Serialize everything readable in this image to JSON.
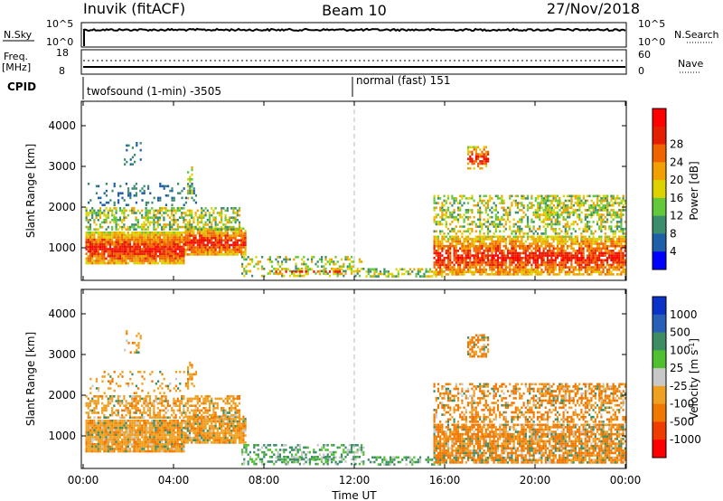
{
  "header": {
    "left": "Inuvik (fitACF)",
    "center": "Beam 10",
    "right": "27/Nov/2018"
  },
  "strip_labels": {
    "nsky": "N.Sky",
    "nsky_top": "10^5",
    "nsky_bottom": "10^0",
    "nsearch": "N.Search",
    "nsearch_top": "10^5",
    "nsearch_bottom": "10^0",
    "freq": "Freq.",
    "freq_unit": "[MHz]",
    "freq_top": "18",
    "freq_bottom": "8",
    "nave": "Nave",
    "nave_top": "60",
    "nave_bottom": "0",
    "cpid": "CPID",
    "cpid_1": "twofsound (1-min) -3505",
    "cpid_2": "normal (fast) 151"
  },
  "chart_data": [
    {
      "type": "heatmap",
      "name": "power",
      "ylabel": "Slant Range [km]",
      "xlabel": "",
      "ylim": [
        200,
        4600
      ],
      "xlim_hours": [
        0,
        24
      ],
      "yticks": [
        1000,
        2000,
        3000,
        4000
      ],
      "colorbar_label": "Power [dB]",
      "colorbar_ticks": [
        "4",
        "8",
        "12",
        "16",
        "20",
        "24",
        "28"
      ],
      "colors": [
        "#0000ff",
        "#1e5fa8",
        "#3c8c6e",
        "#64c83c",
        "#dcd200",
        "#f0a000",
        "#f06400",
        "#e61e00",
        "#ff0000"
      ]
    },
    {
      "type": "heatmap",
      "name": "velocity",
      "ylabel": "Slant Range [km]",
      "xlabel": "Time UT",
      "ylim": [
        200,
        4600
      ],
      "xlim_hours": [
        0,
        24
      ],
      "yticks": [
        1000,
        2000,
        3000,
        4000
      ],
      "xtick_labels": [
        "00:00",
        "04:00",
        "08:00",
        "12:00",
        "16:00",
        "20:00",
        "00:00"
      ],
      "colorbar_label": "Velocity [m s",
      "colorbar_label_sup": "-1",
      "colorbar_label_end": "]",
      "colorbar_ticks": [
        "1000",
        "500",
        "100",
        "25",
        "-25",
        "-100",
        "-500",
        "-1000"
      ],
      "colors": [
        "#0a32c8",
        "#2860b8",
        "#3c8c64",
        "#50c030",
        "#c8c8c8",
        "#f0a020",
        "#f07800",
        "#f03c00",
        "#ff0000"
      ]
    }
  ],
  "scatter_bands": [
    {
      "t0": 0.1,
      "t1": 4.5,
      "r0": 600,
      "r1": 1400,
      "core": "high",
      "density": 0.95
    },
    {
      "t0": 4.5,
      "t1": 7.2,
      "r0": 800,
      "r1": 1500,
      "core": "high",
      "density": 0.9
    },
    {
      "t0": 0.1,
      "t1": 7.0,
      "r0": 1400,
      "r1": 2000,
      "core": "mid",
      "density": 0.55
    },
    {
      "t0": 0.2,
      "t1": 5.0,
      "r0": 2000,
      "r1": 2600,
      "core": "low",
      "density": 0.18
    },
    {
      "t0": 1.8,
      "t1": 2.6,
      "r0": 3000,
      "r1": 3600,
      "core": "low",
      "density": 0.2
    },
    {
      "t0": 4.6,
      "t1": 4.9,
      "r0": 2200,
      "r1": 3000,
      "core": "mid",
      "density": 0.4
    },
    {
      "t0": 7.0,
      "t1": 12.5,
      "r0": 300,
      "r1": 800,
      "core": "mid",
      "density": 0.35
    },
    {
      "t0": 8.5,
      "t1": 11.5,
      "r0": 300,
      "r1": 500,
      "core": "high",
      "density": 0.45
    },
    {
      "t0": 12.5,
      "t1": 16.0,
      "r0": 250,
      "r1": 500,
      "core": "mid",
      "density": 0.45
    },
    {
      "t0": 15.5,
      "t1": 24.0,
      "r0": 300,
      "r1": 1300,
      "core": "high",
      "density": 0.8
    },
    {
      "t0": 15.5,
      "t1": 24.0,
      "r0": 1300,
      "r1": 2300,
      "core": "mid",
      "density": 0.45
    },
    {
      "t0": 17.0,
      "t1": 18.0,
      "r0": 2900,
      "r1": 3500,
      "core": "high",
      "density": 0.6
    },
    {
      "t0": 20.0,
      "t1": 24.0,
      "r0": 1800,
      "r1": 2300,
      "core": "mid",
      "density": 0.35
    }
  ]
}
